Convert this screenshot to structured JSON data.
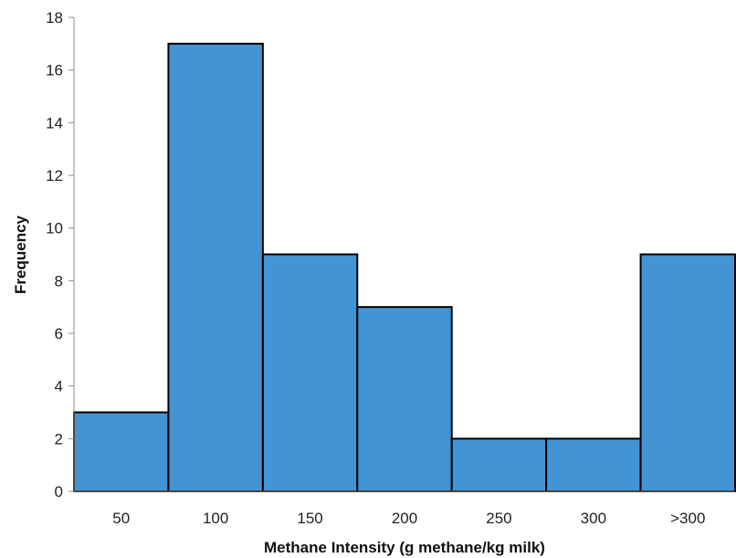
{
  "chart_data": {
    "type": "bar",
    "title": "",
    "xlabel": "Methane Intensity (g methane/kg milk)",
    "ylabel": "Frequency",
    "categories": [
      "50",
      "100",
      "150",
      "200",
      "250",
      "300",
      ">300"
    ],
    "values": [
      3,
      17,
      9,
      7,
      2,
      2,
      9
    ],
    "ylim": [
      0,
      18
    ],
    "yticks": [
      0,
      2,
      4,
      6,
      8,
      10,
      12,
      14,
      16,
      18
    ],
    "grid": false,
    "legend": "none",
    "bar_color": "#4394d4",
    "bar_edge_color": "#000000"
  }
}
